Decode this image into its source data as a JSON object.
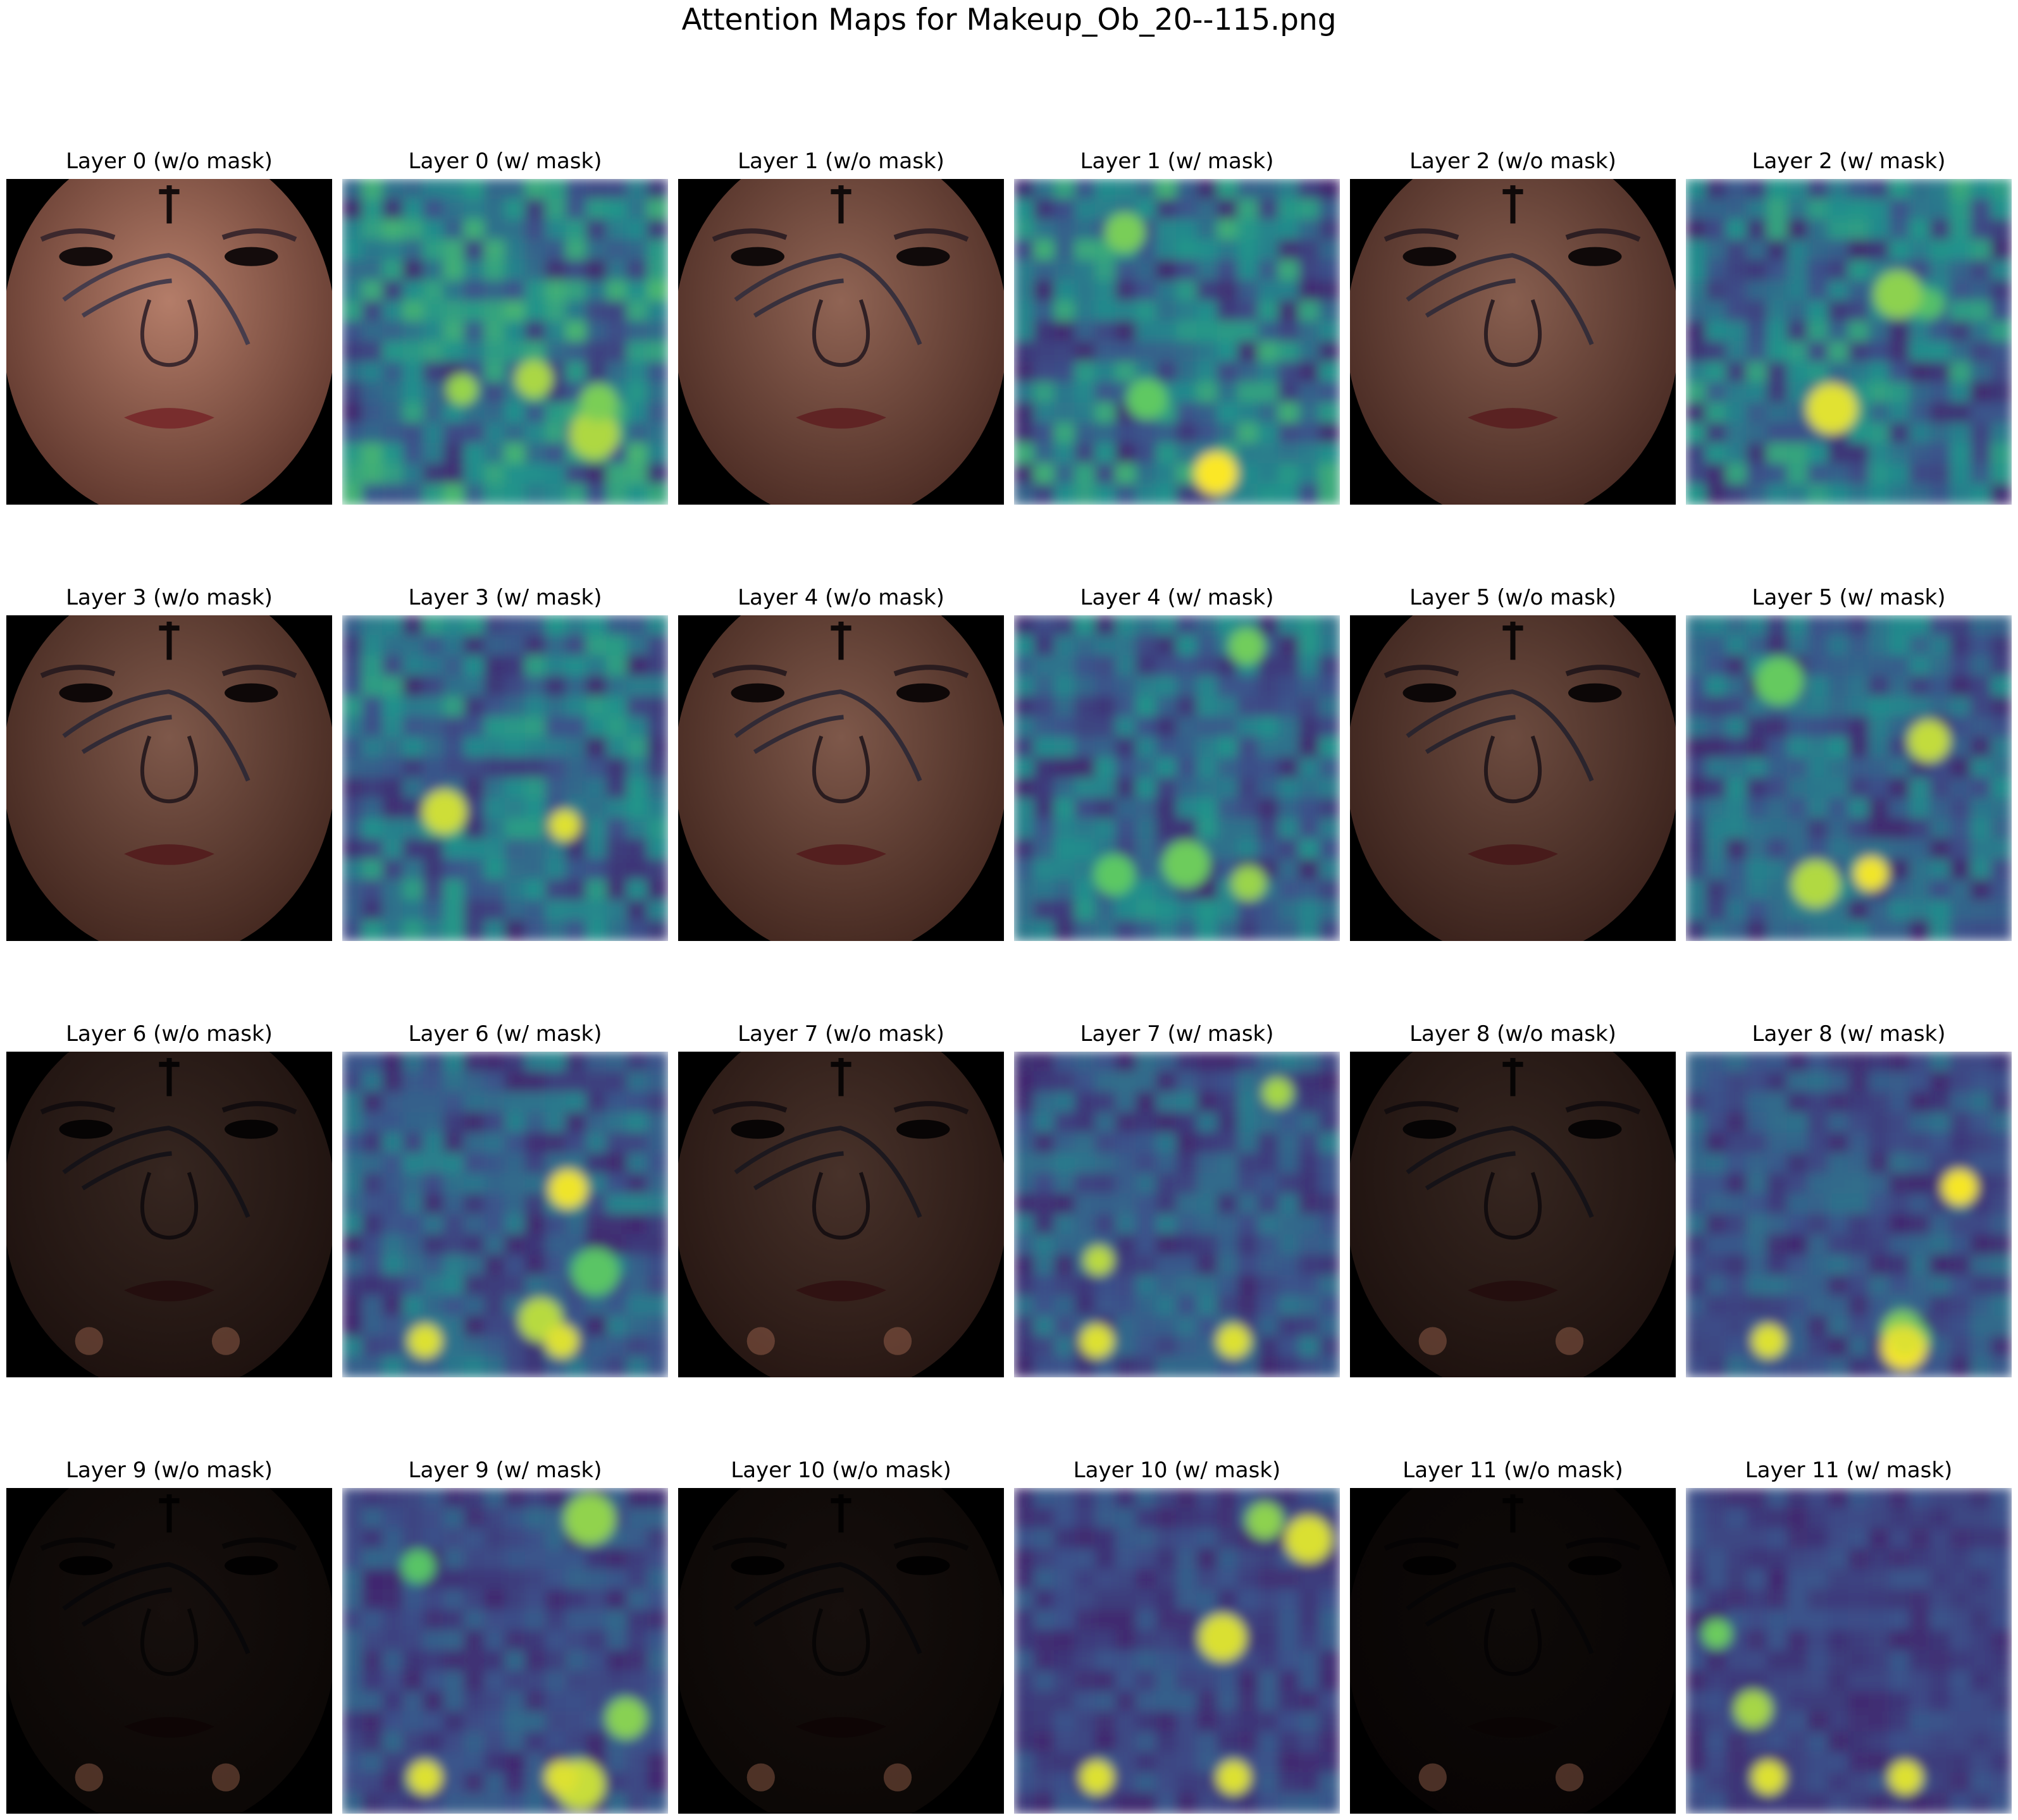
{
  "figure": {
    "title": "Attention Maps for Makeup_Ob_20--115.png"
  },
  "panels": [
    {
      "id": "l0-nomask",
      "title": "Layer 0 (w/o mask)",
      "kind": "face",
      "brightness": 1.0
    },
    {
      "id": "l0-mask",
      "title": "Layer 0 (w/ mask)",
      "kind": "heatmap"
    },
    {
      "id": "l1-nomask",
      "title": "Layer 1 (w/o mask)",
      "kind": "face",
      "brightness": 0.8
    },
    {
      "id": "l1-mask",
      "title": "Layer 1 (w/ mask)",
      "kind": "heatmap"
    },
    {
      "id": "l2-nomask",
      "title": "Layer 2 (w/o mask)",
      "kind": "face",
      "brightness": 0.75
    },
    {
      "id": "l2-mask",
      "title": "Layer 2 (w/ mask)",
      "kind": "heatmap"
    },
    {
      "id": "l3-nomask",
      "title": "Layer 3 (w/o mask)",
      "kind": "face",
      "brightness": 0.7
    },
    {
      "id": "l3-mask",
      "title": "Layer 3 (w/ mask)",
      "kind": "heatmap"
    },
    {
      "id": "l4-nomask",
      "title": "Layer 4 (w/o mask)",
      "kind": "face",
      "brightness": 0.7
    },
    {
      "id": "l4-mask",
      "title": "Layer 4 (w/ mask)",
      "kind": "heatmap"
    },
    {
      "id": "l5-nomask",
      "title": "Layer 5 (w/o mask)",
      "kind": "face",
      "brightness": 0.6
    },
    {
      "id": "l5-mask",
      "title": "Layer 5 (w/ mask)",
      "kind": "heatmap"
    },
    {
      "id": "l6-nomask",
      "title": "Layer 6 (w/o mask)",
      "kind": "face",
      "brightness": 0.3
    },
    {
      "id": "l6-mask",
      "title": "Layer 6 (w/ mask)",
      "kind": "heatmap"
    },
    {
      "id": "l7-nomask",
      "title": "Layer 7 (w/o mask)",
      "kind": "face",
      "brightness": 0.4
    },
    {
      "id": "l7-mask",
      "title": "Layer 7 (w/ mask)",
      "kind": "heatmap"
    },
    {
      "id": "l8-nomask",
      "title": "Layer 8 (w/o mask)",
      "kind": "face",
      "brightness": 0.3
    },
    {
      "id": "l8-mask",
      "title": "Layer 8 (w/ mask)",
      "kind": "heatmap"
    },
    {
      "id": "l9-nomask",
      "title": "Layer 9 (w/o mask)",
      "kind": "face",
      "brightness": 0.12
    },
    {
      "id": "l9-mask",
      "title": "Layer 9 (w/ mask)",
      "kind": "heatmap"
    },
    {
      "id": "l10-nomask",
      "title": "Layer 10 (w/o mask)",
      "kind": "face",
      "brightness": 0.12
    },
    {
      "id": "l10-mask",
      "title": "Layer 10 (w/ mask)",
      "kind": "heatmap"
    },
    {
      "id": "l11-nomask",
      "title": "Layer 11 (w/o mask)",
      "kind": "face",
      "brightness": 0.08
    },
    {
      "id": "l11-mask",
      "title": "Layer 11 (w/ mask)",
      "kind": "heatmap"
    }
  ],
  "colors": {
    "viridis_low": "#440154",
    "viridis_mid": "#21918c",
    "viridis_high": "#fde725",
    "skin": "#a5705a",
    "background": "#ffffff"
  }
}
